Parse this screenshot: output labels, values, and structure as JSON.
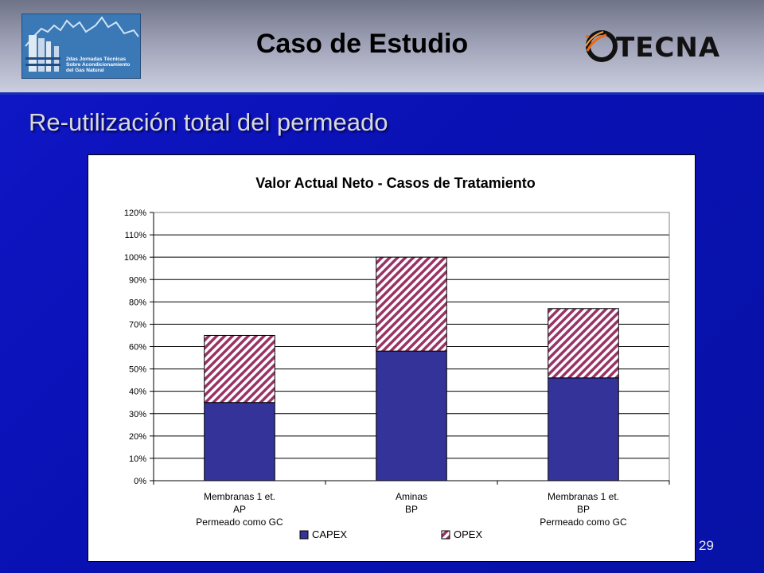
{
  "header": {
    "title": "Caso de Estudio",
    "left_logo_text": "2das Jornadas Técnicas\nSobre Acondicionamiento\ndel Gas Natural",
    "right_logo_text": "TECNA"
  },
  "slide": {
    "heading": "Re-utilización total del permeado",
    "page_number": "29"
  },
  "chart_data": {
    "type": "bar",
    "stacked": true,
    "title": "Valor Actual Neto - Casos de Tratamiento",
    "categories": [
      [
        "Membranas 1 et.",
        "AP",
        "Permeado como GC"
      ],
      [
        "Aminas",
        "BP"
      ],
      [
        "Membranas 1 et.",
        "BP",
        "Permeado como GC"
      ]
    ],
    "series": [
      {
        "name": "CAPEX",
        "values": [
          35,
          58,
          46
        ],
        "color": "#333399"
      },
      {
        "name": "OPEX",
        "values": [
          30,
          42,
          31
        ],
        "color": "#993366",
        "pattern": "diagonal-hatch"
      }
    ],
    "ylim": [
      0,
      120
    ],
    "ytick_step": 10,
    "ytick_format": "percent",
    "grid": true,
    "legend_position": "bottom"
  }
}
